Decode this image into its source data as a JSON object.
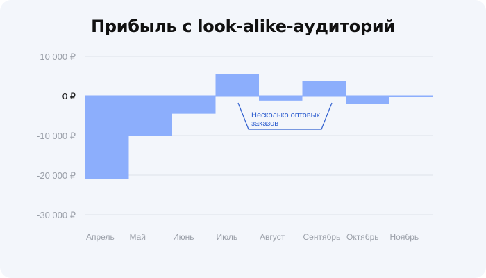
{
  "chart_data": {
    "type": "bar",
    "title": "Прибыль с look-alike-аудиторий",
    "categories": [
      "Апрель",
      "Май",
      "Июнь",
      "Июль",
      "Август",
      "Сентябрь",
      "Октябрь",
      "Ноябрь"
    ],
    "values": [
      -21000,
      -10000,
      -4500,
      5500,
      -1200,
      3700,
      -2000,
      -300
    ],
    "yticks": [
      {
        "value": 10000,
        "label": "10 000 ₽"
      },
      {
        "value": 0,
        "label": "0 ₽"
      },
      {
        "value": -10000,
        "label": "-10 000 ₽"
      },
      {
        "value": -20000,
        "label": "-20 000 ₽"
      },
      {
        "value": -30000,
        "label": "-30 000 ₽"
      }
    ],
    "ylim": [
      -30000,
      10000
    ],
    "bar_color": "#8caefc",
    "grid": true,
    "annotation": {
      "lines": [
        "Несколько оптовых",
        "заказов"
      ],
      "category_from": "Август",
      "category_to": "Сентябрь",
      "color": "#2f5fcf"
    }
  }
}
